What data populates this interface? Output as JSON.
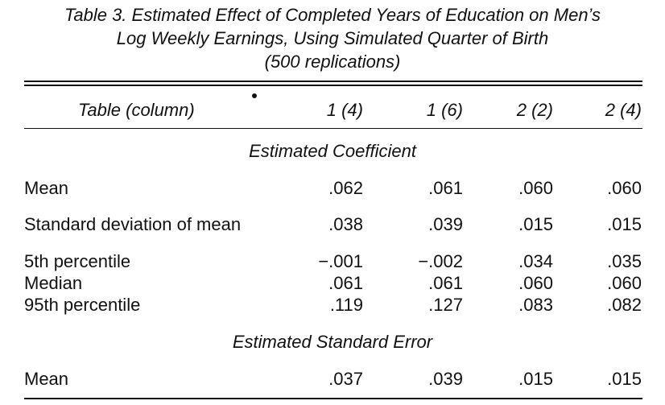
{
  "caption": {
    "line1": "Table 3.  Estimated Effect of Completed Years of Education on Men’s",
    "line2": "Log Weekly Earnings, Using Simulated Quarter of Birth",
    "line3": "(500 replications)"
  },
  "header": {
    "row_label": "Table (column)",
    "columns": [
      "1 (4)",
      "1 (6)",
      "2 (2)",
      "2 (4)"
    ]
  },
  "sections": {
    "coef_title": "Estimated Coefficient",
    "se_title": "Estimated Standard Error"
  },
  "rows": [
    {
      "label": "Mean",
      "values": [
        ".062",
        ".061",
        ".060",
        ".060"
      ]
    },
    {
      "label": "Standard deviation of mean",
      "values": [
        ".038",
        ".039",
        ".015",
        ".015"
      ]
    },
    {
      "label": "5th percentile",
      "values": [
        "−.001",
        "−.002",
        ".034",
        ".035"
      ]
    },
    {
      "label": "Median",
      "values": [
        ".061",
        ".061",
        ".060",
        ".060"
      ]
    },
    {
      "label": "95th percentile",
      "values": [
        ".119",
        ".127",
        ".083",
        ".082"
      ]
    },
    {
      "label": "Mean",
      "values": [
        ".037",
        ".039",
        ".015",
        ".015"
      ]
    }
  ]
}
